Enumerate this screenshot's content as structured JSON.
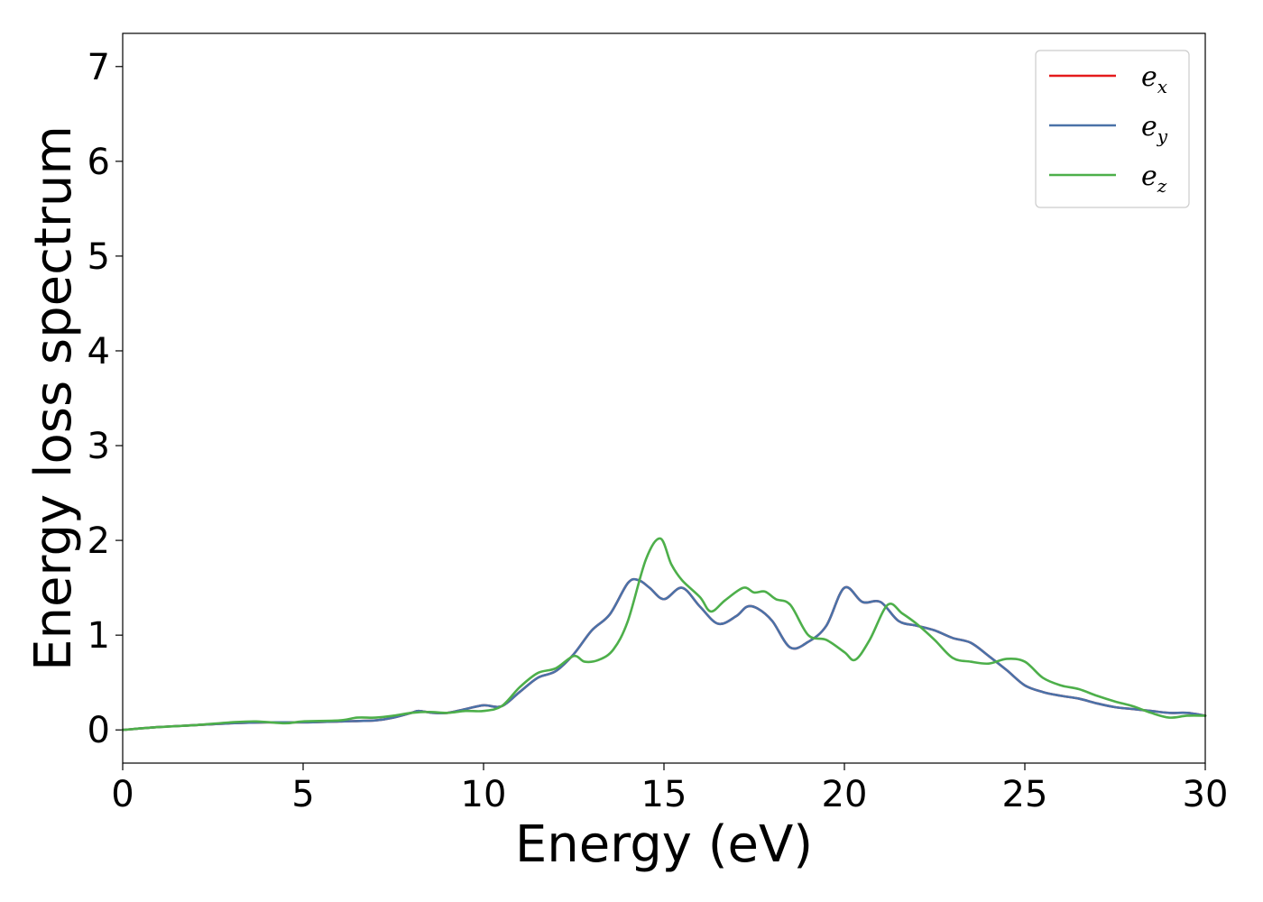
{
  "chart_data": {
    "type": "line",
    "xlabel": "Energy (eV)",
    "ylabel": "Energy loss spectrum",
    "xlim": [
      0,
      30
    ],
    "ylim": [
      -0.35,
      7.35
    ],
    "xticks": [
      0,
      5,
      10,
      15,
      20,
      25,
      30
    ],
    "yticks": [
      0,
      1,
      2,
      3,
      4,
      5,
      6,
      7
    ],
    "grid": false,
    "legend_position": "top-right",
    "series": [
      {
        "name": "e_x",
        "label_main": "e",
        "label_sub": "x",
        "color": "#e41a1c",
        "x": [
          0,
          1,
          2,
          3,
          4,
          5,
          6,
          7,
          7.5,
          8,
          8.2,
          8.6,
          9,
          9.5,
          10,
          10.5,
          11,
          11.5,
          12,
          12.5,
          13,
          13.5,
          14,
          14.3,
          14.6,
          15,
          15.5,
          16,
          16.5,
          17,
          17.3,
          17.6,
          18,
          18.5,
          19,
          19.5,
          20,
          20.5,
          21,
          21.5,
          22,
          22.5,
          23,
          23.5,
          24,
          24.5,
          25,
          25.5,
          26,
          26.5,
          27,
          27.5,
          28,
          28.5,
          29,
          29.5,
          30
        ],
        "y": [
          0,
          0.03,
          0.05,
          0.07,
          0.08,
          0.08,
          0.09,
          0.1,
          0.13,
          0.18,
          0.2,
          0.18,
          0.18,
          0.22,
          0.26,
          0.25,
          0.4,
          0.55,
          0.62,
          0.8,
          1.05,
          1.22,
          1.55,
          1.58,
          1.5,
          1.38,
          1.5,
          1.3,
          1.12,
          1.2,
          1.3,
          1.28,
          1.15,
          0.87,
          0.93,
          1.1,
          1.5,
          1.35,
          1.35,
          1.15,
          1.1,
          1.05,
          0.97,
          0.92,
          0.78,
          0.63,
          0.47,
          0.4,
          0.36,
          0.33,
          0.28,
          0.24,
          0.22,
          0.2,
          0.18,
          0.18,
          0.15
        ]
      },
      {
        "name": "e_y",
        "label_main": "e",
        "label_sub": "y",
        "color": "#4a72a8",
        "x": [
          0,
          1,
          2,
          3,
          4,
          5,
          6,
          7,
          7.5,
          8,
          8.2,
          8.6,
          9,
          9.5,
          10,
          10.5,
          11,
          11.5,
          12,
          12.5,
          13,
          13.5,
          14,
          14.3,
          14.6,
          15,
          15.5,
          16,
          16.5,
          17,
          17.3,
          17.6,
          18,
          18.5,
          19,
          19.5,
          20,
          20.5,
          21,
          21.5,
          22,
          22.5,
          23,
          23.5,
          24,
          24.5,
          25,
          25.5,
          26,
          26.5,
          27,
          27.5,
          28,
          28.5,
          29,
          29.5,
          30
        ],
        "y": [
          0,
          0.03,
          0.05,
          0.07,
          0.08,
          0.08,
          0.09,
          0.1,
          0.13,
          0.18,
          0.2,
          0.18,
          0.18,
          0.22,
          0.26,
          0.25,
          0.4,
          0.55,
          0.62,
          0.8,
          1.05,
          1.22,
          1.55,
          1.58,
          1.5,
          1.38,
          1.5,
          1.3,
          1.12,
          1.2,
          1.3,
          1.28,
          1.15,
          0.87,
          0.93,
          1.1,
          1.5,
          1.35,
          1.35,
          1.15,
          1.1,
          1.05,
          0.97,
          0.92,
          0.78,
          0.63,
          0.47,
          0.4,
          0.36,
          0.33,
          0.28,
          0.24,
          0.22,
          0.2,
          0.18,
          0.18,
          0.15
        ]
      },
      {
        "name": "e_z",
        "label_main": "e",
        "label_sub": "z",
        "color": "#4daf4a",
        "x": [
          0,
          1,
          2,
          3,
          3.7,
          4.5,
          5,
          6,
          6.5,
          7,
          7.5,
          8,
          8.5,
          9,
          9.5,
          10,
          10.5,
          11,
          11.5,
          12,
          12.5,
          12.8,
          13.2,
          13.6,
          14,
          14.5,
          14.9,
          15.2,
          15.5,
          16,
          16.3,
          16.7,
          17.2,
          17.5,
          17.8,
          18.1,
          18.5,
          19,
          19.5,
          20,
          20.3,
          20.7,
          21.2,
          21.6,
          22,
          22.5,
          23,
          23.5,
          24,
          24.5,
          25,
          25.5,
          26,
          26.5,
          27,
          27.5,
          28,
          28.5,
          29,
          29.5,
          30
        ],
        "y": [
          0,
          0.03,
          0.05,
          0.08,
          0.09,
          0.07,
          0.09,
          0.1,
          0.13,
          0.13,
          0.15,
          0.18,
          0.19,
          0.18,
          0.2,
          0.2,
          0.25,
          0.45,
          0.6,
          0.65,
          0.78,
          0.72,
          0.74,
          0.85,
          1.15,
          1.8,
          2.02,
          1.75,
          1.58,
          1.4,
          1.25,
          1.37,
          1.5,
          1.45,
          1.46,
          1.38,
          1.32,
          1.0,
          0.95,
          0.82,
          0.74,
          0.95,
          1.32,
          1.23,
          1.12,
          0.95,
          0.76,
          0.72,
          0.7,
          0.75,
          0.72,
          0.55,
          0.47,
          0.43,
          0.36,
          0.3,
          0.25,
          0.18,
          0.13,
          0.15,
          0.15
        ]
      }
    ]
  }
}
